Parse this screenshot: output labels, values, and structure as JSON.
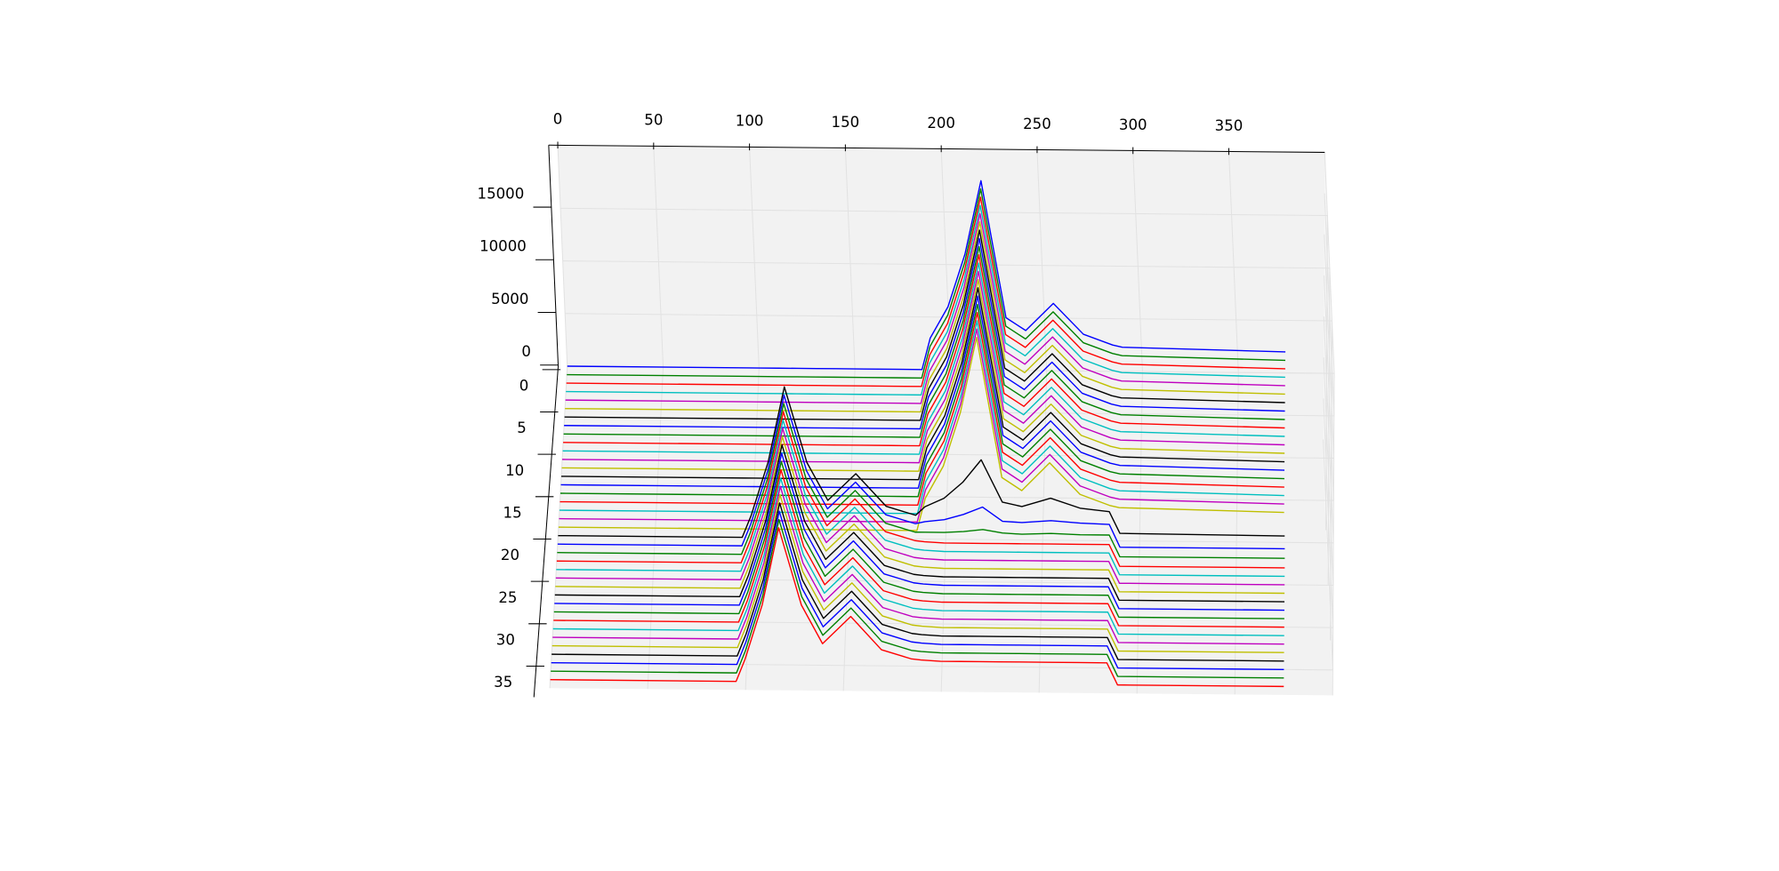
{
  "chart_data": {
    "type": "line3d",
    "x": [
      0,
      95,
      100,
      110,
      120,
      130,
      140,
      155,
      170,
      185,
      190,
      200,
      210,
      220,
      230,
      240,
      255,
      270,
      285,
      290,
      375
    ],
    "xlim": [
      0,
      400
    ],
    "ylim": [
      0,
      38
    ],
    "zlim": [
      0,
      21000
    ],
    "xticks": [
      0,
      50,
      100,
      150,
      200,
      250,
      300,
      350
    ],
    "yticks": [
      0,
      5,
      10,
      15,
      20,
      25,
      30,
      35
    ],
    "zticks": [
      0,
      5000,
      10000,
      15000
    ],
    "grid": true,
    "series": [
      {
        "y": 0,
        "color": "#0000ff",
        "values": [
          0,
          0,
          0,
          0,
          0,
          0,
          0,
          0,
          0,
          0,
          3000,
          6000,
          11000,
          18000,
          5000,
          3800,
          6400,
          3500,
          2500,
          2300,
          2000
        ]
      },
      {
        "y": 1,
        "color": "#008000",
        "values": [
          0,
          0,
          0,
          0,
          0,
          0,
          0,
          0,
          0,
          0,
          3000,
          6000,
          11000,
          18000,
          5000,
          3800,
          6400,
          3500,
          2500,
          2300,
          2000
        ]
      },
      {
        "y": 2,
        "color": "#ff0000",
        "values": [
          0,
          0,
          0,
          0,
          0,
          0,
          0,
          0,
          0,
          0,
          3000,
          6000,
          11000,
          18000,
          5000,
          3800,
          6400,
          3500,
          2500,
          2300,
          2000
        ]
      },
      {
        "y": 3,
        "color": "#00bfbf",
        "values": [
          0,
          0,
          0,
          0,
          0,
          0,
          0,
          0,
          0,
          0,
          3000,
          6000,
          11000,
          18000,
          5000,
          3800,
          6400,
          3500,
          2500,
          2300,
          2000
        ]
      },
      {
        "y": 4,
        "color": "#bf00bf",
        "values": [
          0,
          0,
          0,
          0,
          0,
          0,
          0,
          0,
          0,
          0,
          3000,
          6000,
          11000,
          18000,
          5000,
          3800,
          6400,
          3500,
          2500,
          2300,
          2000
        ]
      },
      {
        "y": 5,
        "color": "#bfbf00",
        "values": [
          0,
          0,
          0,
          0,
          0,
          0,
          0,
          0,
          0,
          0,
          3000,
          6000,
          11000,
          18000,
          5000,
          3800,
          6400,
          3500,
          2500,
          2300,
          2000
        ]
      },
      {
        "y": 6,
        "color": "#000000",
        "values": [
          0,
          0,
          0,
          0,
          0,
          0,
          0,
          0,
          0,
          0,
          3000,
          6000,
          11000,
          18000,
          5000,
          3800,
          6400,
          3500,
          2500,
          2300,
          2000
        ]
      },
      {
        "y": 7,
        "color": "#0000ff",
        "values": [
          0,
          0,
          0,
          0,
          0,
          0,
          0,
          0,
          0,
          0,
          3000,
          6000,
          11000,
          18000,
          5000,
          3800,
          6400,
          3500,
          2500,
          2300,
          2000
        ]
      },
      {
        "y": 8,
        "color": "#008000",
        "values": [
          0,
          0,
          0,
          0,
          0,
          0,
          0,
          0,
          0,
          0,
          3000,
          6000,
          11000,
          18000,
          5000,
          3800,
          6400,
          3500,
          2500,
          2300,
          2000
        ]
      },
      {
        "y": 9,
        "color": "#ff0000",
        "values": [
          0,
          0,
          0,
          0,
          0,
          0,
          0,
          0,
          0,
          0,
          3000,
          6000,
          11000,
          18000,
          5000,
          3800,
          6400,
          3500,
          2500,
          2300,
          2000
        ]
      },
      {
        "y": 10,
        "color": "#00bfbf",
        "values": [
          0,
          0,
          0,
          0,
          0,
          0,
          0,
          0,
          0,
          0,
          3000,
          6000,
          11000,
          18000,
          5000,
          3800,
          6400,
          3500,
          2500,
          2300,
          2000
        ]
      },
      {
        "y": 11,
        "color": "#bf00bf",
        "values": [
          0,
          0,
          0,
          0,
          0,
          0,
          0,
          0,
          0,
          0,
          3000,
          6000,
          11000,
          18000,
          5000,
          3800,
          6400,
          3500,
          2500,
          2300,
          2000
        ]
      },
      {
        "y": 12,
        "color": "#bfbf00",
        "values": [
          0,
          0,
          0,
          0,
          0,
          0,
          0,
          0,
          0,
          0,
          3000,
          6000,
          11000,
          18000,
          5000,
          3800,
          6400,
          3500,
          2500,
          2300,
          2000
        ]
      },
      {
        "y": 13,
        "color": "#000000",
        "values": [
          0,
          0,
          0,
          0,
          0,
          0,
          0,
          0,
          0,
          0,
          3000,
          6000,
          11000,
          18000,
          5000,
          3800,
          6400,
          3500,
          2500,
          2300,
          2000
        ]
      },
      {
        "y": 14,
        "color": "#0000ff",
        "values": [
          0,
          0,
          0,
          0,
          0,
          0,
          0,
          0,
          0,
          0,
          3000,
          6000,
          11000,
          18000,
          5000,
          3800,
          6400,
          3500,
          2500,
          2300,
          2000
        ]
      },
      {
        "y": 15,
        "color": "#008000",
        "values": [
          0,
          0,
          0,
          0,
          0,
          0,
          0,
          0,
          0,
          0,
          3000,
          6000,
          11000,
          18000,
          5000,
          3800,
          6400,
          3500,
          2500,
          2300,
          2000
        ]
      },
      {
        "y": 16,
        "color": "#ff0000",
        "values": [
          0,
          0,
          0,
          0,
          0,
          0,
          0,
          0,
          0,
          0,
          3000,
          6000,
          11000,
          18000,
          5000,
          3800,
          6400,
          3500,
          2500,
          2300,
          2000
        ]
      },
      {
        "y": 17,
        "color": "#00bfbf",
        "values": [
          0,
          0,
          0,
          0,
          0,
          0,
          0,
          0,
          0,
          0,
          3000,
          6000,
          11000,
          18000,
          5000,
          3800,
          6400,
          3500,
          2500,
          2300,
          2000
        ]
      },
      {
        "y": 18,
        "color": "#bf00bf",
        "values": [
          0,
          0,
          0,
          0,
          0,
          0,
          0,
          0,
          0,
          0,
          3000,
          6000,
          11000,
          18000,
          5000,
          3800,
          6400,
          3500,
          2500,
          2300,
          2000
        ]
      },
      {
        "y": 19,
        "color": "#bfbf00",
        "values": [
          0,
          0,
          0,
          0,
          0,
          0,
          0,
          0,
          0,
          0,
          3000,
          6000,
          11000,
          18000,
          5000,
          3800,
          6400,
          3500,
          2500,
          2300,
          2000
        ]
      },
      {
        "y": 20,
        "color": "#000000",
        "values": [
          0,
          0,
          2000,
          7000,
          14000,
          7000,
          3500,
          6000,
          3000,
          2200,
          3000,
          3800,
          5300,
          7400,
          3500,
          3100,
          3900,
          3000,
          2700,
          700,
          600
        ]
      },
      {
        "y": 21,
        "color": "#0000ff",
        "values": [
          0,
          0,
          2000,
          7000,
          14000,
          7000,
          3500,
          6000,
          3000,
          2200,
          2400,
          2600,
          3100,
          3800,
          2500,
          2400,
          2600,
          2400,
          2300,
          200,
          200
        ]
      },
      {
        "y": 22,
        "color": "#008000",
        "values": [
          0,
          0,
          2000,
          7000,
          14000,
          7000,
          3500,
          6000,
          3000,
          2200,
          2200,
          2200,
          2300,
          2500,
          2200,
          2100,
          2200,
          2100,
          2100,
          100,
          100
        ]
      },
      {
        "y": 23,
        "color": "#ff0000",
        "values": [
          0,
          0,
          2000,
          7000,
          14000,
          7000,
          3500,
          6000,
          3000,
          2200,
          2100,
          2000,
          2000,
          2000,
          2000,
          2000,
          2000,
          2000,
          2000,
          0,
          0
        ]
      },
      {
        "y": 24,
        "color": "#00bfbf",
        "values": [
          0,
          0,
          2000,
          7000,
          14000,
          7000,
          3500,
          6000,
          3000,
          2200,
          2100,
          2000,
          2000,
          2000,
          2000,
          2000,
          2000,
          2000,
          2000,
          0,
          0
        ]
      },
      {
        "y": 25,
        "color": "#bf00bf",
        "values": [
          0,
          0,
          2000,
          7000,
          14000,
          7000,
          3500,
          6000,
          3000,
          2200,
          2100,
          2000,
          2000,
          2000,
          2000,
          2000,
          2000,
          2000,
          2000,
          0,
          0
        ]
      },
      {
        "y": 26,
        "color": "#bfbf00",
        "values": [
          0,
          0,
          2000,
          7000,
          14000,
          7000,
          3500,
          6000,
          3000,
          2200,
          2100,
          2000,
          2000,
          2000,
          2000,
          2000,
          2000,
          2000,
          2000,
          0,
          0
        ]
      },
      {
        "y": 27,
        "color": "#000000",
        "values": [
          0,
          0,
          2000,
          7000,
          14000,
          7000,
          3500,
          6000,
          3000,
          2200,
          2100,
          2000,
          2000,
          2000,
          2000,
          2000,
          2000,
          2000,
          2000,
          0,
          0
        ]
      },
      {
        "y": 28,
        "color": "#0000ff",
        "values": [
          0,
          0,
          2000,
          7000,
          14000,
          7000,
          3500,
          6000,
          3000,
          2200,
          2100,
          2000,
          2000,
          2000,
          2000,
          2000,
          2000,
          2000,
          2000,
          0,
          0
        ]
      },
      {
        "y": 29,
        "color": "#008000",
        "values": [
          0,
          0,
          2000,
          7000,
          14000,
          7000,
          3500,
          6000,
          3000,
          2200,
          2100,
          2000,
          2000,
          2000,
          2000,
          2000,
          2000,
          2000,
          2000,
          0,
          0
        ]
      },
      {
        "y": 30,
        "color": "#ff0000",
        "values": [
          0,
          0,
          2000,
          7000,
          14000,
          7000,
          3500,
          6000,
          3000,
          2200,
          2100,
          2000,
          2000,
          2000,
          2000,
          2000,
          2000,
          2000,
          2000,
          0,
          0
        ]
      },
      {
        "y": 31,
        "color": "#00bfbf",
        "values": [
          0,
          0,
          2000,
          7000,
          14000,
          7000,
          3500,
          6000,
          3000,
          2200,
          2100,
          2000,
          2000,
          2000,
          2000,
          2000,
          2000,
          2000,
          2000,
          0,
          0
        ]
      },
      {
        "y": 32,
        "color": "#bf00bf",
        "values": [
          0,
          0,
          2000,
          7000,
          14000,
          7000,
          3500,
          6000,
          3000,
          2200,
          2100,
          2000,
          2000,
          2000,
          2000,
          2000,
          2000,
          2000,
          2000,
          0,
          0
        ]
      },
      {
        "y": 33,
        "color": "#bfbf00",
        "values": [
          0,
          0,
          2000,
          7000,
          14000,
          7000,
          3500,
          6000,
          3000,
          2200,
          2100,
          2000,
          2000,
          2000,
          2000,
          2000,
          2000,
          2000,
          2000,
          0,
          0
        ]
      },
      {
        "y": 34,
        "color": "#000000",
        "values": [
          0,
          0,
          2000,
          7000,
          14000,
          7000,
          3500,
          6000,
          3000,
          2200,
          2100,
          2000,
          2000,
          2000,
          2000,
          2000,
          2000,
          2000,
          2000,
          0,
          0
        ]
      },
      {
        "y": 35,
        "color": "#0000ff",
        "values": [
          0,
          0,
          2000,
          7000,
          14000,
          7000,
          3500,
          6000,
          3000,
          2200,
          2100,
          2000,
          2000,
          2000,
          2000,
          2000,
          2000,
          2000,
          2000,
          0,
          0
        ]
      },
      {
        "y": 36,
        "color": "#008000",
        "values": [
          0,
          0,
          2000,
          7000,
          14000,
          7000,
          3500,
          6000,
          3000,
          2200,
          2100,
          2000,
          2000,
          2000,
          2000,
          2000,
          2000,
          2000,
          2000,
          0,
          0
        ]
      },
      {
        "y": 37,
        "color": "#ff0000",
        "values": [
          0,
          0,
          2000,
          7000,
          14000,
          7000,
          3500,
          6000,
          3000,
          2200,
          2100,
          2000,
          2000,
          2000,
          2000,
          2000,
          2000,
          2000,
          2000,
          0,
          0
        ]
      }
    ]
  }
}
